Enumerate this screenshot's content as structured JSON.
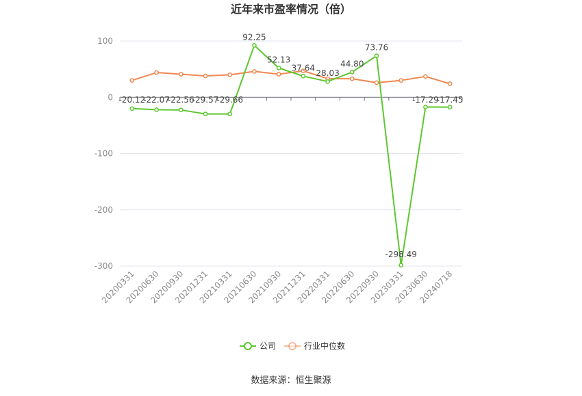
{
  "chart_data": {
    "type": "line",
    "title": "近年来市盈率情况（倍）",
    "categories": [
      "20200331",
      "20200630",
      "20200930",
      "20201231",
      "20210331",
      "20210630",
      "20210930",
      "20211231",
      "20220331",
      "20220630",
      "20220930",
      "20230331",
      "20230630",
      "20240718"
    ],
    "series": [
      {
        "name": "公司",
        "color": "#5dc72e",
        "values": [
          -20.12,
          -22.07,
          -22.56,
          -29.57,
          -29.66,
          92.25,
          52.13,
          37.64,
          28.03,
          44.8,
          73.76,
          -298.49,
          -17.29,
          -17.45
        ],
        "labels": [
          "-20.12",
          "-22.07",
          "-22.56",
          "-29.57",
          "-29.66",
          "92.25",
          "52.13",
          "37.64",
          "28.03",
          "44.80",
          "73.76",
          "-298.49",
          "-17.29",
          "-17.45"
        ]
      },
      {
        "name": "行业中位数",
        "color": "#f0874f",
        "values": [
          30,
          44,
          41,
          38,
          40,
          46,
          41,
          47,
          33,
          33,
          26,
          30,
          37,
          24
        ]
      }
    ],
    "ylim": [
      -300,
      100
    ],
    "yticks": [
      100,
      0,
      -100,
      -200,
      -300
    ],
    "grid": true,
    "legend_position": "bottom"
  },
  "source": "数据来源：恒生聚源"
}
